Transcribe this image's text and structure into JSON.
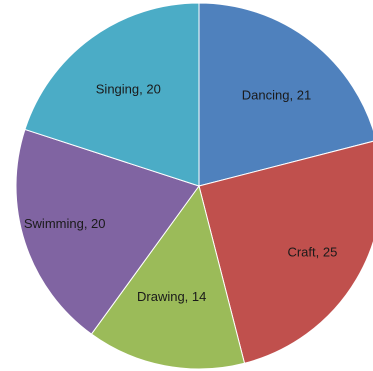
{
  "chart_data": {
    "type": "pie",
    "slices": [
      {
        "label": "Dancing",
        "value": 21,
        "color": "#4F81BD",
        "text": "Dancing, 21"
      },
      {
        "label": "Craft",
        "value": 25,
        "color": "#C0504D",
        "text": "Craft, 25"
      },
      {
        "label": "Drawing",
        "value": 14,
        "color": "#9BBB59",
        "text": "Drawing, 14"
      },
      {
        "label": "Swimming",
        "value": 20,
        "color": "#8064A2",
        "text": "Swimming,  20"
      },
      {
        "label": "Singing",
        "value": 20,
        "color": "#4BACC6",
        "text": "Singing, 20"
      }
    ],
    "start_angle": "12 o'clock",
    "direction": "clockwise",
    "legend": "none",
    "data_labels": "inside slices"
  }
}
